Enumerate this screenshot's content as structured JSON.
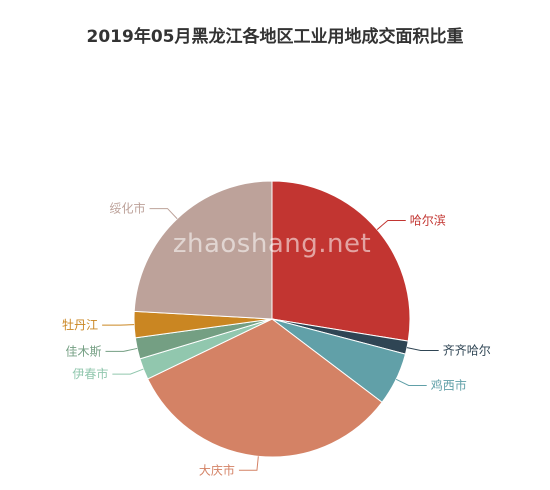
{
  "chart_data": {
    "type": "pie",
    "title": "2019年05月黑龙江各地区工业用地成交面积比重",
    "watermark": "zhaoshang.net",
    "slices": [
      {
        "label": "哈尔滨",
        "value": 28.8,
        "color": "#c23531"
      },
      {
        "label": "齐齐哈尔",
        "value": 1.6,
        "color": "#2f4554"
      },
      {
        "label": "鸡西市",
        "value": 6.5,
        "color": "#61a0a8"
      },
      {
        "label": "大庆市",
        "value": 34.0,
        "color": "#d48265"
      },
      {
        "label": "伊春市",
        "value": 2.6,
        "color": "#91c7ae"
      },
      {
        "label": "佳木斯",
        "value": 2.6,
        "color": "#749f83"
      },
      {
        "label": "牡丹江",
        "value": 3.2,
        "color": "#ca8622"
      },
      {
        "label": "绥化市",
        "value": 25.2,
        "color": "#bda29a"
      }
    ],
    "legend": "none"
  }
}
